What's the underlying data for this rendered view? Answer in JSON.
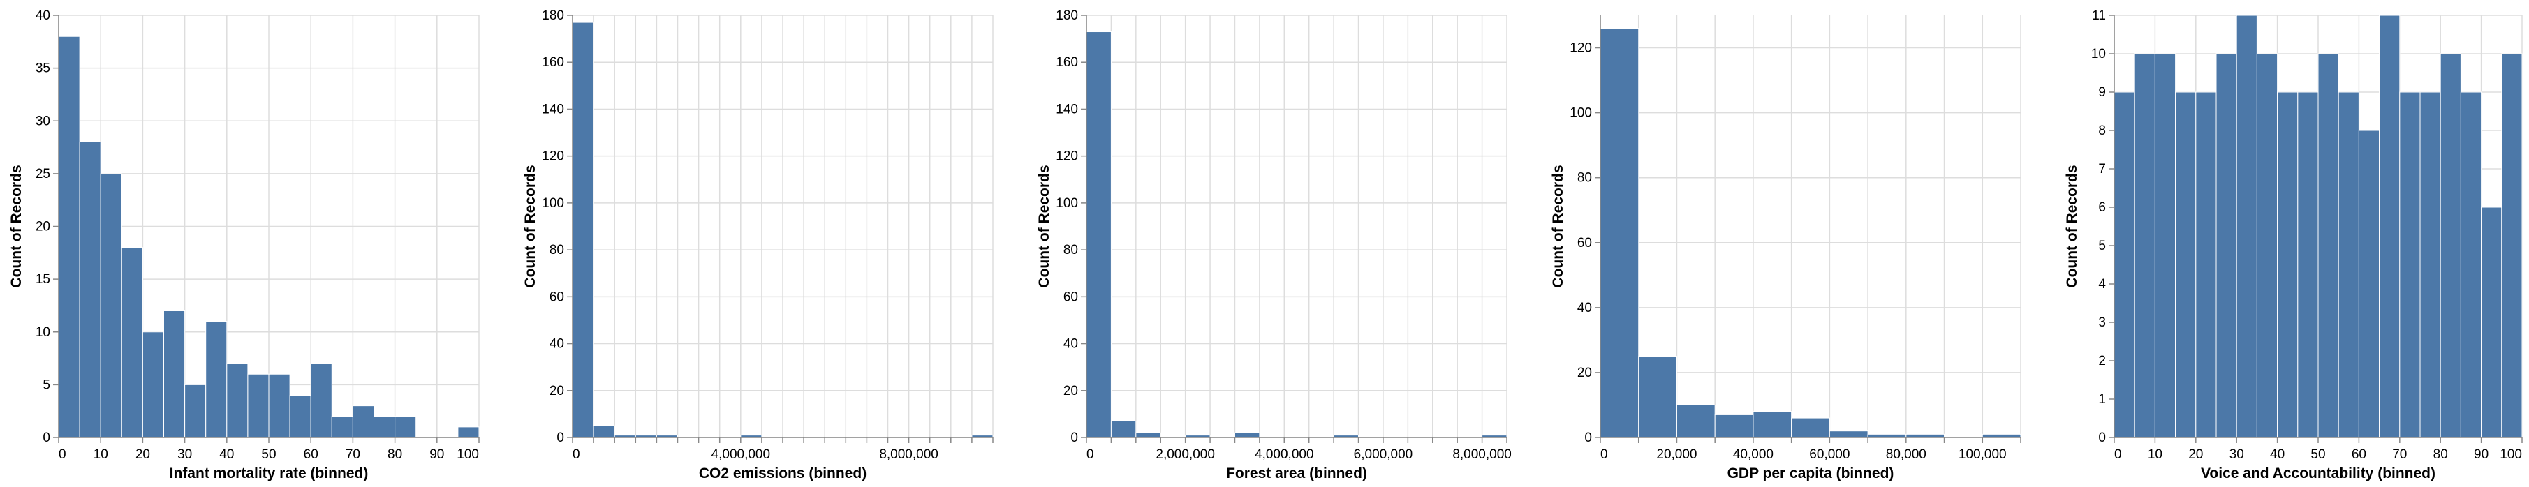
{
  "colors": {
    "bar": "#4c78a8",
    "grid": "#dddddd",
    "axis": "#888888"
  },
  "chart_data": [
    {
      "type": "bar",
      "xlabel": "Infant mortality rate (binned)",
      "ylabel": "Count of Records",
      "xlim": [
        0,
        100
      ],
      "ylim": [
        0,
        40
      ],
      "grid": true,
      "x_ticks": [
        0,
        10,
        20,
        30,
        40,
        50,
        60,
        70,
        80,
        90,
        100
      ],
      "x_tick_labels": [
        "0",
        "10",
        "20",
        "30",
        "40",
        "50",
        "60",
        "70",
        "80",
        "90",
        "100"
      ],
      "y_ticks": [
        0,
        5,
        10,
        15,
        20,
        25,
        30,
        35,
        40
      ],
      "y_tick_labels": [
        "0",
        "5",
        "10",
        "15",
        "20",
        "25",
        "30",
        "35",
        "40"
      ],
      "bins": [
        [
          0,
          5,
          38
        ],
        [
          5,
          10,
          28
        ],
        [
          10,
          15,
          25
        ],
        [
          15,
          20,
          18
        ],
        [
          20,
          25,
          10
        ],
        [
          25,
          30,
          12
        ],
        [
          30,
          35,
          5
        ],
        [
          35,
          40,
          11
        ],
        [
          40,
          45,
          7
        ],
        [
          45,
          50,
          6
        ],
        [
          50,
          55,
          6
        ],
        [
          55,
          60,
          4
        ],
        [
          60,
          65,
          7
        ],
        [
          65,
          70,
          2
        ],
        [
          70,
          75,
          3
        ],
        [
          75,
          80,
          2
        ],
        [
          80,
          85,
          2
        ],
        [
          85,
          90,
          0
        ],
        [
          90,
          95,
          0
        ],
        [
          95,
          100,
          1
        ]
      ]
    },
    {
      "type": "bar",
      "xlabel": "CO2 emissions (binned)",
      "ylabel": "Count of Records",
      "xlim": [
        0,
        10000000
      ],
      "ylim": [
        0,
        180
      ],
      "grid": true,
      "x_ticks": [
        0,
        500000,
        1000000,
        1500000,
        2000000,
        2500000,
        3000000,
        3500000,
        4000000,
        4500000,
        5000000,
        5500000,
        6000000,
        6500000,
        7000000,
        7500000,
        8000000,
        8500000,
        9000000,
        9500000,
        10000000
      ],
      "x_tick_labels": [
        "0",
        "",
        "",
        "",
        "",
        "",
        "",
        "",
        "4,000,000",
        "",
        "",
        "",
        "",
        "",
        "",
        "",
        "8,000,000",
        "",
        "",
        "",
        ""
      ],
      "y_ticks": [
        0,
        20,
        40,
        60,
        80,
        100,
        120,
        140,
        160,
        180
      ],
      "y_tick_labels": [
        "0",
        "20",
        "40",
        "60",
        "80",
        "100",
        "120",
        "140",
        "160",
        "180"
      ],
      "bins": [
        [
          0,
          500000,
          177
        ],
        [
          500000,
          1000000,
          5
        ],
        [
          1000000,
          1500000,
          1
        ],
        [
          1500000,
          2000000,
          1
        ],
        [
          2000000,
          2500000,
          1
        ],
        [
          4000000,
          4500000,
          1
        ],
        [
          9500000,
          10000000,
          1
        ]
      ]
    },
    {
      "type": "bar",
      "xlabel": "Forest area (binned)",
      "ylabel": "Count of Records",
      "xlim": [
        0,
        8500000
      ],
      "ylim": [
        0,
        180
      ],
      "grid": true,
      "x_ticks": [
        0,
        500000,
        1000000,
        1500000,
        2000000,
        2500000,
        3000000,
        3500000,
        4000000,
        4500000,
        5000000,
        5500000,
        6000000,
        6500000,
        7000000,
        7500000,
        8000000,
        8500000
      ],
      "x_tick_labels": [
        "0",
        "",
        "",
        "",
        "2,000,000",
        "",
        "",
        "",
        "4,000,000",
        "",
        "",
        "",
        "6,000,000",
        "",
        "",
        "",
        "8,000,000",
        ""
      ],
      "y_ticks": [
        0,
        20,
        40,
        60,
        80,
        100,
        120,
        140,
        160,
        180
      ],
      "y_tick_labels": [
        "0",
        "20",
        "40",
        "60",
        "80",
        "100",
        "120",
        "140",
        "160",
        "180"
      ],
      "bins": [
        [
          0,
          500000,
          173
        ],
        [
          500000,
          1000000,
          7
        ],
        [
          1000000,
          1500000,
          2
        ],
        [
          2000000,
          2500000,
          1
        ],
        [
          3000000,
          3500000,
          2
        ],
        [
          5000000,
          5500000,
          1
        ],
        [
          8000000,
          8500000,
          1
        ]
      ]
    },
    {
      "type": "bar",
      "xlabel": "GDP per capita (binned)",
      "ylabel": "Count of Records",
      "xlim": [
        0,
        110000
      ],
      "ylim": [
        0,
        130
      ],
      "grid": true,
      "x_ticks": [
        0,
        10000,
        20000,
        30000,
        40000,
        50000,
        60000,
        70000,
        80000,
        90000,
        100000,
        110000
      ],
      "x_tick_labels": [
        "0",
        "",
        "20,000",
        "",
        "40,000",
        "",
        "60,000",
        "",
        "80,000",
        "",
        "100,000",
        ""
      ],
      "y_ticks": [
        0,
        20,
        40,
        60,
        80,
        100,
        120
      ],
      "y_tick_labels": [
        "0",
        "20",
        "40",
        "60",
        "80",
        "100",
        "120"
      ],
      "bins": [
        [
          0,
          10000,
          126
        ],
        [
          10000,
          20000,
          25
        ],
        [
          20000,
          30000,
          10
        ],
        [
          30000,
          40000,
          7
        ],
        [
          40000,
          50000,
          8
        ],
        [
          50000,
          60000,
          6
        ],
        [
          60000,
          70000,
          2
        ],
        [
          70000,
          80000,
          1
        ],
        [
          80000,
          90000,
          1
        ],
        [
          100000,
          110000,
          1
        ]
      ]
    },
    {
      "type": "bar",
      "xlabel": "Voice and Accountability (binned)",
      "ylabel": "Count of Records",
      "xlim": [
        0,
        100
      ],
      "ylim": [
        0,
        11
      ],
      "grid": true,
      "x_ticks": [
        0,
        10,
        20,
        30,
        40,
        50,
        60,
        70,
        80,
        90,
        100
      ],
      "x_tick_labels": [
        "0",
        "10",
        "20",
        "30",
        "40",
        "50",
        "60",
        "70",
        "80",
        "90",
        "100"
      ],
      "y_ticks": [
        0,
        1,
        2,
        3,
        4,
        5,
        6,
        7,
        8,
        9,
        10,
        11
      ],
      "y_tick_labels": [
        "0",
        "1",
        "2",
        "3",
        "4",
        "5",
        "6",
        "7",
        "8",
        "9",
        "10",
        "11"
      ],
      "bins": [
        [
          0,
          5,
          9
        ],
        [
          5,
          10,
          10
        ],
        [
          10,
          15,
          10
        ],
        [
          15,
          20,
          9
        ],
        [
          20,
          25,
          9
        ],
        [
          25,
          30,
          10
        ],
        [
          30,
          35,
          11
        ],
        [
          35,
          40,
          10
        ],
        [
          40,
          45,
          9
        ],
        [
          45,
          50,
          9
        ],
        [
          50,
          55,
          10
        ],
        [
          55,
          60,
          9
        ],
        [
          60,
          65,
          8
        ],
        [
          65,
          70,
          11
        ],
        [
          70,
          75,
          9
        ],
        [
          75,
          80,
          9
        ],
        [
          80,
          85,
          10
        ],
        [
          85,
          90,
          9
        ],
        [
          90,
          95,
          6
        ],
        [
          95,
          100,
          10
        ]
      ]
    }
  ]
}
